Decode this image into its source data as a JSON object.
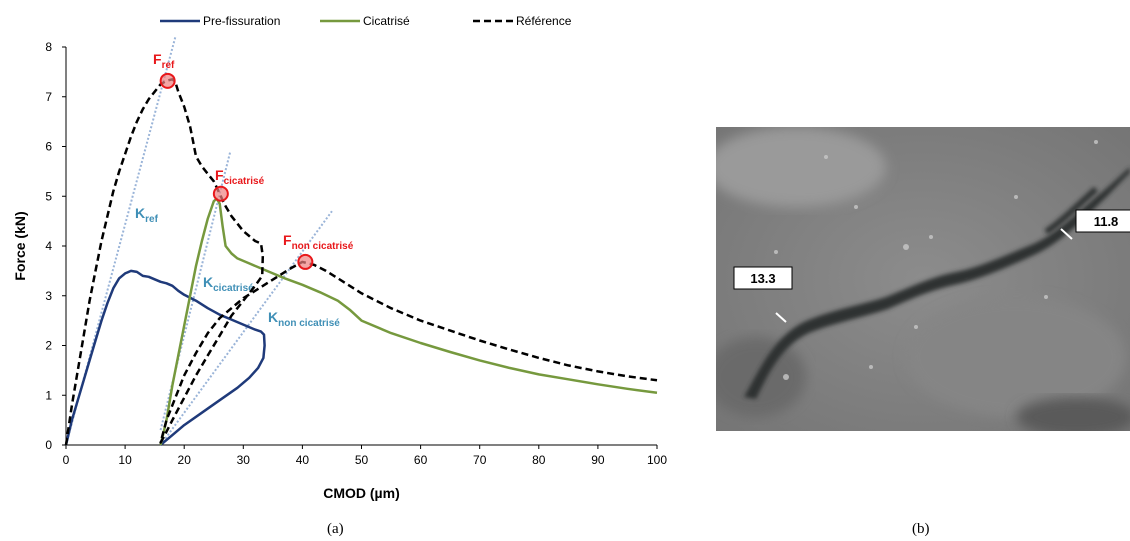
{
  "captions": {
    "a": "(a)",
    "b": "(b)"
  },
  "chart_data": {
    "type": "line",
    "xlabel": "CMOD (µm)",
    "ylabel": "Force (kN)",
    "xlim": [
      0,
      100
    ],
    "ylim": [
      0,
      8
    ],
    "xticks": [
      0,
      10,
      20,
      30,
      40,
      50,
      60,
      70,
      80,
      90,
      100
    ],
    "yticks": [
      0,
      1,
      2,
      3,
      4,
      5,
      6,
      7,
      8
    ],
    "grid": false,
    "legend": "top",
    "series": [
      {
        "name": "Pre-fissuration",
        "color": "#1f3a7a",
        "style": "solid",
        "points": [
          [
            0,
            0
          ],
          [
            1,
            0.5
          ],
          [
            2,
            0.9
          ],
          [
            3,
            1.3
          ],
          [
            4,
            1.7
          ],
          [
            5,
            2.1
          ],
          [
            6,
            2.5
          ],
          [
            7,
            2.85
          ],
          [
            8,
            3.15
          ],
          [
            9,
            3.35
          ],
          [
            10,
            3.45
          ],
          [
            11,
            3.5
          ],
          [
            12,
            3.48
          ],
          [
            13,
            3.4
          ],
          [
            14,
            3.38
          ],
          [
            15,
            3.33
          ],
          [
            16,
            3.28
          ],
          [
            17,
            3.25
          ],
          [
            18,
            3.2
          ],
          [
            19,
            3.1
          ],
          [
            20,
            3.02
          ],
          [
            22,
            2.9
          ],
          [
            24,
            2.75
          ],
          [
            26,
            2.62
          ],
          [
            28,
            2.52
          ],
          [
            30,
            2.42
          ],
          [
            32,
            2.32
          ],
          [
            33,
            2.28
          ],
          [
            33.5,
            2.22
          ],
          [
            33.6,
            2.0
          ],
          [
            33.4,
            1.75
          ],
          [
            32.5,
            1.55
          ],
          [
            31,
            1.35
          ],
          [
            29,
            1.15
          ],
          [
            26,
            0.9
          ],
          [
            23,
            0.65
          ],
          [
            20,
            0.4
          ],
          [
            18,
            0.2
          ],
          [
            16.5,
            0.05
          ],
          [
            16,
            0
          ]
        ]
      },
      {
        "name": "Cicatrisé",
        "color": "#76993e",
        "style": "solid",
        "points": [
          [
            16,
            0
          ],
          [
            17,
            0.5
          ],
          [
            18,
            1.2
          ],
          [
            19,
            1.8
          ],
          [
            20,
            2.4
          ],
          [
            21,
            3.0
          ],
          [
            22,
            3.6
          ],
          [
            23,
            4.1
          ],
          [
            24,
            4.55
          ],
          [
            25,
            4.9
          ],
          [
            25.5,
            4.95
          ],
          [
            26,
            4.85
          ],
          [
            26.5,
            4.4
          ],
          [
            27,
            4.0
          ],
          [
            28,
            3.85
          ],
          [
            29,
            3.75
          ],
          [
            31,
            3.65
          ],
          [
            33,
            3.55
          ],
          [
            35,
            3.45
          ],
          [
            37,
            3.35
          ],
          [
            40,
            3.22
          ],
          [
            43,
            3.07
          ],
          [
            46,
            2.9
          ],
          [
            48,
            2.72
          ],
          [
            50,
            2.5
          ],
          [
            55,
            2.25
          ],
          [
            60,
            2.05
          ],
          [
            65,
            1.87
          ],
          [
            70,
            1.7
          ],
          [
            75,
            1.55
          ],
          [
            80,
            1.42
          ],
          [
            85,
            1.32
          ],
          [
            90,
            1.22
          ],
          [
            95,
            1.13
          ],
          [
            100,
            1.05
          ]
        ]
      },
      {
        "name": "Référence",
        "color": "#000000",
        "style": "dashed",
        "points": [
          [
            0,
            0
          ],
          [
            1,
            0.8
          ],
          [
            2,
            1.5
          ],
          [
            3,
            2.2
          ],
          [
            4,
            2.9
          ],
          [
            5,
            3.5
          ],
          [
            6,
            4.1
          ],
          [
            7,
            4.6
          ],
          [
            8,
            5.1
          ],
          [
            9,
            5.5
          ],
          [
            10,
            5.85
          ],
          [
            11,
            6.2
          ],
          [
            12,
            6.5
          ],
          [
            13,
            6.75
          ],
          [
            14,
            6.95
          ],
          [
            15,
            7.1
          ],
          [
            16,
            7.25
          ],
          [
            17,
            7.32
          ],
          [
            18,
            7.35
          ],
          [
            18.5,
            7.3
          ],
          [
            19,
            7.1
          ],
          [
            20,
            6.8
          ],
          [
            21,
            6.4
          ],
          [
            21.5,
            6.1
          ],
          [
            22,
            5.8
          ],
          [
            23,
            5.6
          ],
          [
            24,
            5.45
          ],
          [
            25,
            5.3
          ],
          [
            26,
            5.05
          ],
          [
            26.5,
            4.92
          ],
          [
            27,
            4.8
          ],
          [
            28,
            4.6
          ],
          [
            29,
            4.45
          ],
          [
            30,
            4.3
          ],
          [
            31,
            4.2
          ],
          [
            32,
            4.1
          ],
          [
            33,
            4.05
          ],
          [
            33.3,
            3.8
          ],
          [
            33.2,
            3.4
          ],
          [
            32,
            3.2
          ],
          [
            30,
            2.9
          ],
          [
            28,
            2.6
          ],
          [
            26,
            2.2
          ],
          [
            24,
            1.8
          ],
          [
            22,
            1.4
          ],
          [
            20,
            0.95
          ],
          [
            18,
            0.5
          ],
          [
            16.5,
            0.15
          ],
          [
            16,
            0.05
          ],
          [
            17,
            0.5
          ],
          [
            18,
            0.8
          ],
          [
            19,
            1.1
          ],
          [
            20,
            1.4
          ],
          [
            22,
            1.85
          ],
          [
            24,
            2.25
          ],
          [
            26,
            2.55
          ],
          [
            28,
            2.75
          ],
          [
            30,
            2.95
          ],
          [
            32,
            3.1
          ],
          [
            34,
            3.25
          ],
          [
            36,
            3.4
          ],
          [
            38,
            3.55
          ],
          [
            40,
            3.68
          ],
          [
            42,
            3.62
          ],
          [
            44,
            3.5
          ],
          [
            46,
            3.35
          ],
          [
            48,
            3.2
          ],
          [
            50,
            3.05
          ],
          [
            55,
            2.75
          ],
          [
            60,
            2.5
          ],
          [
            65,
            2.3
          ],
          [
            70,
            2.1
          ],
          [
            75,
            1.92
          ],
          [
            80,
            1.75
          ],
          [
            85,
            1.6
          ],
          [
            90,
            1.48
          ],
          [
            95,
            1.38
          ],
          [
            100,
            1.3
          ]
        ]
      }
    ],
    "tangents": [
      {
        "label": "K",
        "sub": "ref",
        "points": [
          [
            0,
            0
          ],
          [
            18.5,
            8.2
          ]
        ]
      },
      {
        "label": "K",
        "sub": "cicatrisé",
        "points": [
          [
            16,
            0.3
          ],
          [
            27.8,
            5.9
          ]
        ]
      },
      {
        "label": "K",
        "sub": "non cicatrisé",
        "points": [
          [
            16,
            0
          ],
          [
            45,
            4.7
          ]
        ]
      }
    ],
    "peaks": [
      {
        "label": "F",
        "sub": "ref",
        "x": 17.2,
        "y": 7.32
      },
      {
        "label": "F",
        "sub": "cicatrisé",
        "x": 26.2,
        "y": 5.05
      },
      {
        "label": "F",
        "sub": "non cicatrisé",
        "x": 40.5,
        "y": 3.68
      }
    ],
    "annotation_colors": {
      "peak": "#e8181b",
      "tangent": "#3f8fb6",
      "tangent_line": "#9ab4d8"
    }
  },
  "photo": {
    "measurements": [
      "13.3",
      "11.8"
    ]
  }
}
